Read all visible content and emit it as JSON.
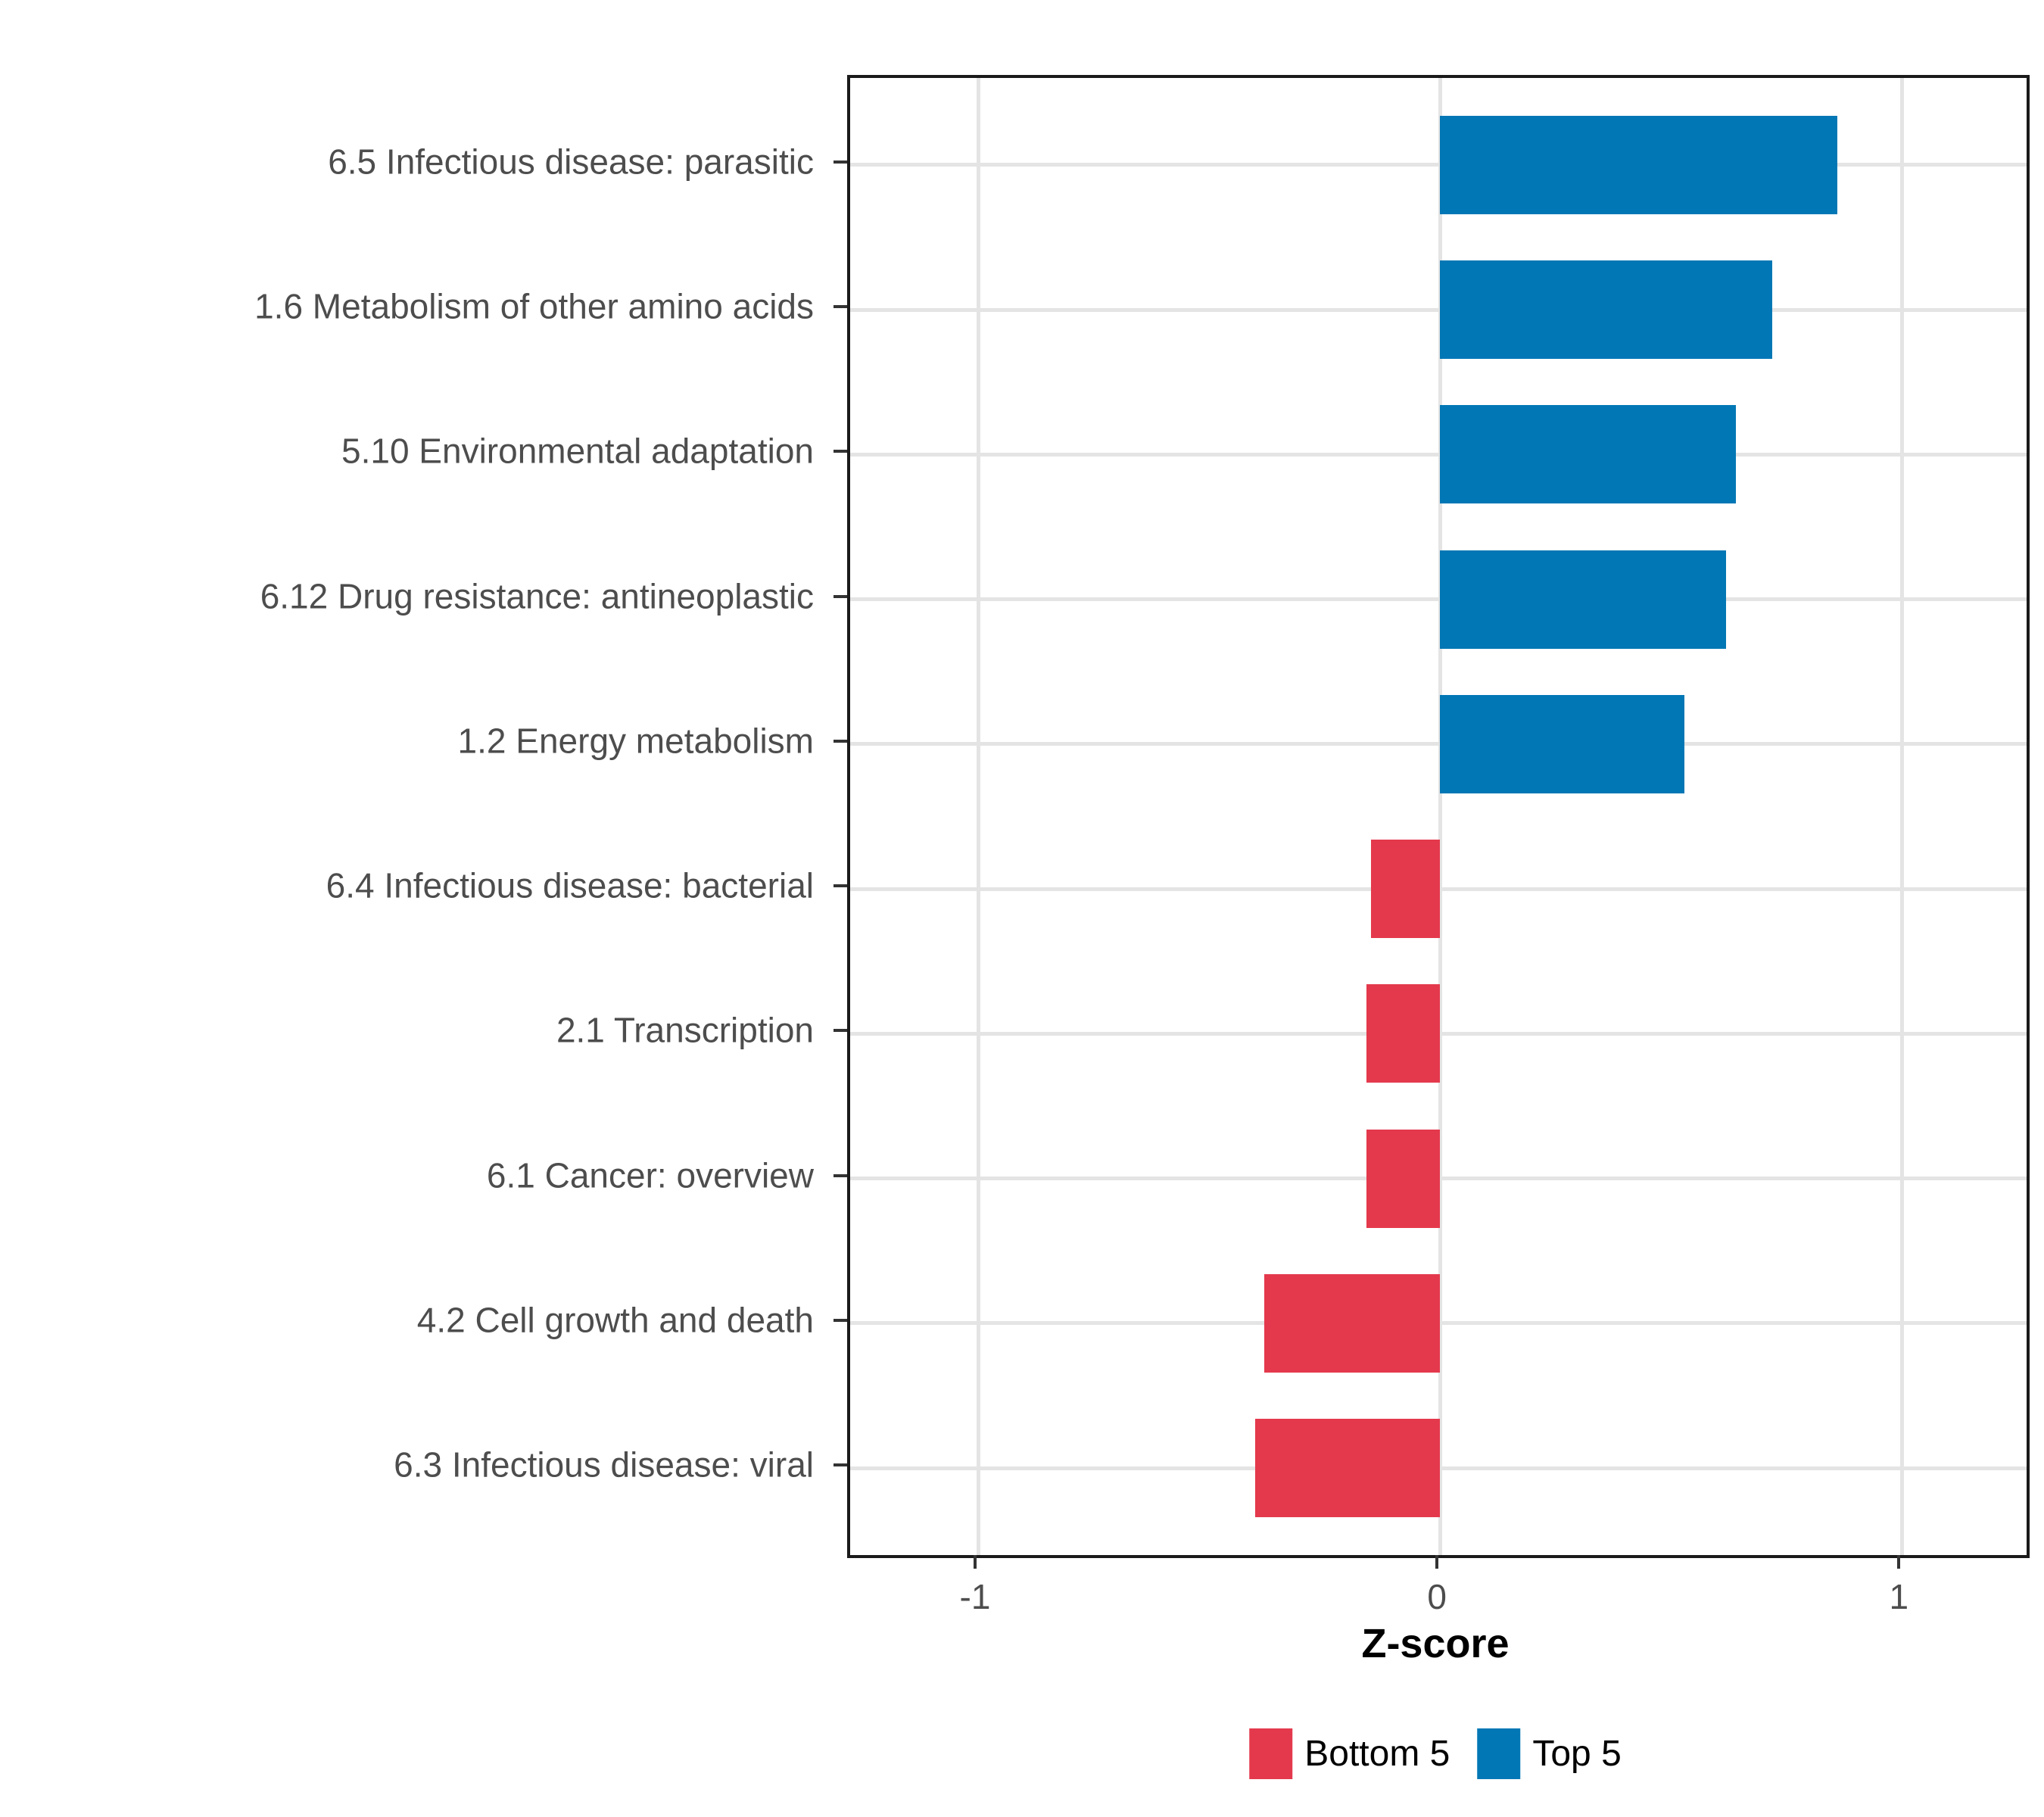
{
  "chart_data": {
    "type": "bar",
    "orientation": "horizontal",
    "title": "",
    "xlabel": "Z-score",
    "ylabel": "",
    "categories": [
      "6.5 Infectious disease: parasitic",
      "1.6 Metabolism of other amino acids",
      "5.10 Environmental adaptation",
      "6.12 Drug resistance: antineoplastic",
      "1.2 Energy metabolism",
      "6.4 Infectious disease: bacterial",
      "2.1 Transcription",
      "6.1 Cancer: overview",
      "4.2 Cell growth and death",
      "6.3 Infectious disease: viral"
    ],
    "values": [
      0.86,
      0.72,
      0.64,
      0.62,
      0.53,
      -0.15,
      -0.16,
      -0.16,
      -0.38,
      -0.4
    ],
    "groups": [
      "Top 5",
      "Top 5",
      "Top 5",
      "Top 5",
      "Top 5",
      "Bottom 5",
      "Bottom 5",
      "Bottom 5",
      "Bottom 5",
      "Bottom 5"
    ],
    "x_ticks": [
      "-1",
      "0",
      "1"
    ],
    "x_tick_values": [
      -1,
      0,
      1
    ],
    "xlim": [
      -1.277,
      1.27
    ],
    "grid": true,
    "legend_position": "bottom",
    "legend": [
      {
        "label": "Bottom 5",
        "color": "#e4394c"
      },
      {
        "label": "Top 5",
        "color": "#0277b5"
      }
    ],
    "colors": {
      "Top 5": "#0277b5",
      "Bottom 5": "#e4394c"
    }
  },
  "style": {
    "grid_color": "#e4e4e4",
    "axis_text_color": "#4d4d4d",
    "tick_color": "#333333",
    "panel_border_color": "#1a1a1a",
    "background": "#ffffff"
  }
}
